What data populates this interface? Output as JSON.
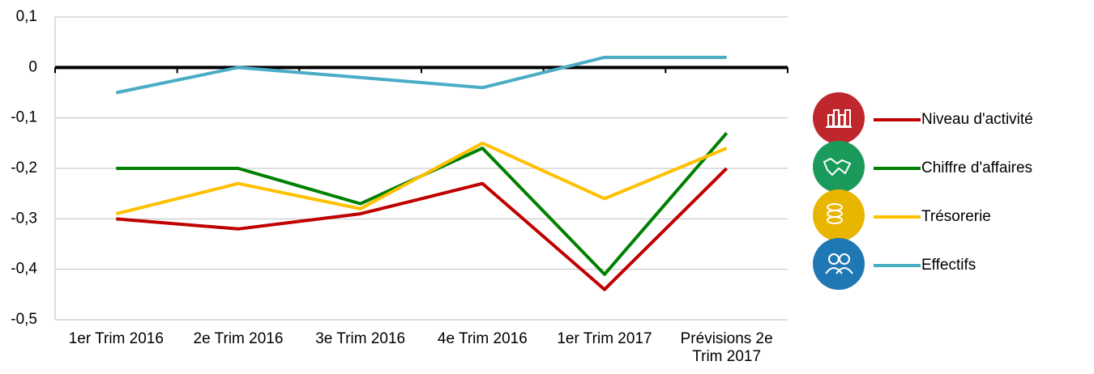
{
  "chart_data": {
    "type": "line",
    "categories": [
      "1er Trim 2016",
      "2e Trim 2016",
      "3e Trim 2016",
      "4e Trim 2016",
      "1er Trim 2017",
      "Prévisions 2e Trim 2017"
    ],
    "series": [
      {
        "name": "Niveau d'activité",
        "color": "#c00000",
        "values": [
          -0.3,
          -0.32,
          -0.29,
          -0.23,
          -0.44,
          -0.2
        ]
      },
      {
        "name": "Chiffre d'affaires",
        "color": "#008000",
        "values": [
          -0.2,
          -0.2,
          -0.27,
          -0.16,
          -0.41,
          -0.13
        ]
      },
      {
        "name": "Trésorerie",
        "color": "#ffc000",
        "values": [
          -0.29,
          -0.23,
          -0.28,
          -0.15,
          -0.26,
          -0.16
        ]
      },
      {
        "name": "Effectifs",
        "color": "#4bacc6",
        "values": [
          -0.05,
          0,
          -0.02,
          -0.04,
          0.02,
          0.02
        ]
      }
    ],
    "ylim": [
      -0.5,
      0.1
    ],
    "yticks": [
      {
        "value": 0.1,
        "label": "0,1"
      },
      0,
      {
        "value": -0.1,
        "label": "-0,1"
      },
      {
        "value": -0.2,
        "label": "-0,2"
      },
      {
        "value": -0.3,
        "label": "-0,3"
      },
      {
        "value": -0.4,
        "label": "-0,4"
      },
      {
        "value": -0.5,
        "label": "-0,5"
      }
    ],
    "grid": true
  }
}
